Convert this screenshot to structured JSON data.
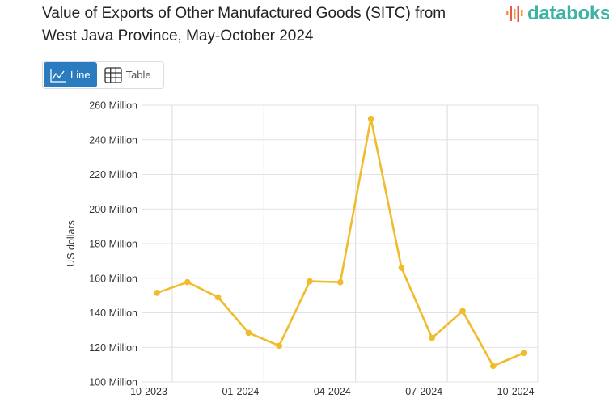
{
  "title": "Value of Exports of Other Manufactured Goods (SITC) from West Java Province, May-October 2024",
  "logo": {
    "text": "databoks",
    "color": "#3fb2a6"
  },
  "view_toggle": {
    "line_label": "Line",
    "table_label": "Table",
    "selected": "Line",
    "accent": "#2a7bbf"
  },
  "chart_data": {
    "type": "line",
    "title": "Value of Exports of Other Manufactured Goods (SITC) from West Java Province, May-October 2024",
    "ylabel": "US dollars",
    "xlabel": "",
    "x": [
      "10-2023",
      "11-2023",
      "12-2023",
      "01-2024",
      "02-2024",
      "03-2024",
      "04-2024",
      "05-2024",
      "06-2024",
      "07-2024",
      "08-2024",
      "09-2024",
      "10-2024"
    ],
    "xtick_labels": [
      "10-2023",
      "01-2024",
      "04-2024",
      "07-2024",
      "10-2024"
    ],
    "series": [
      {
        "values": [
          151.5,
          157.7,
          149.0,
          128.4,
          120.9,
          158.2,
          157.7,
          252.2,
          166.0,
          125.4,
          141.0,
          109.2,
          116.7
        ],
        "color": "#f0bc2c"
      }
    ],
    "value_unit": "Million US dollars",
    "ylim": [
      100,
      260
    ],
    "yticks": [
      100,
      120,
      140,
      160,
      180,
      200,
      220,
      240,
      260
    ],
    "ytick_labels": [
      "100 Million",
      "120 Million",
      "140 Million",
      "160 Million",
      "180 Million",
      "200 Million",
      "220 Million",
      "240 Million",
      "260 Million"
    ],
    "grid": true,
    "legend": "none"
  }
}
